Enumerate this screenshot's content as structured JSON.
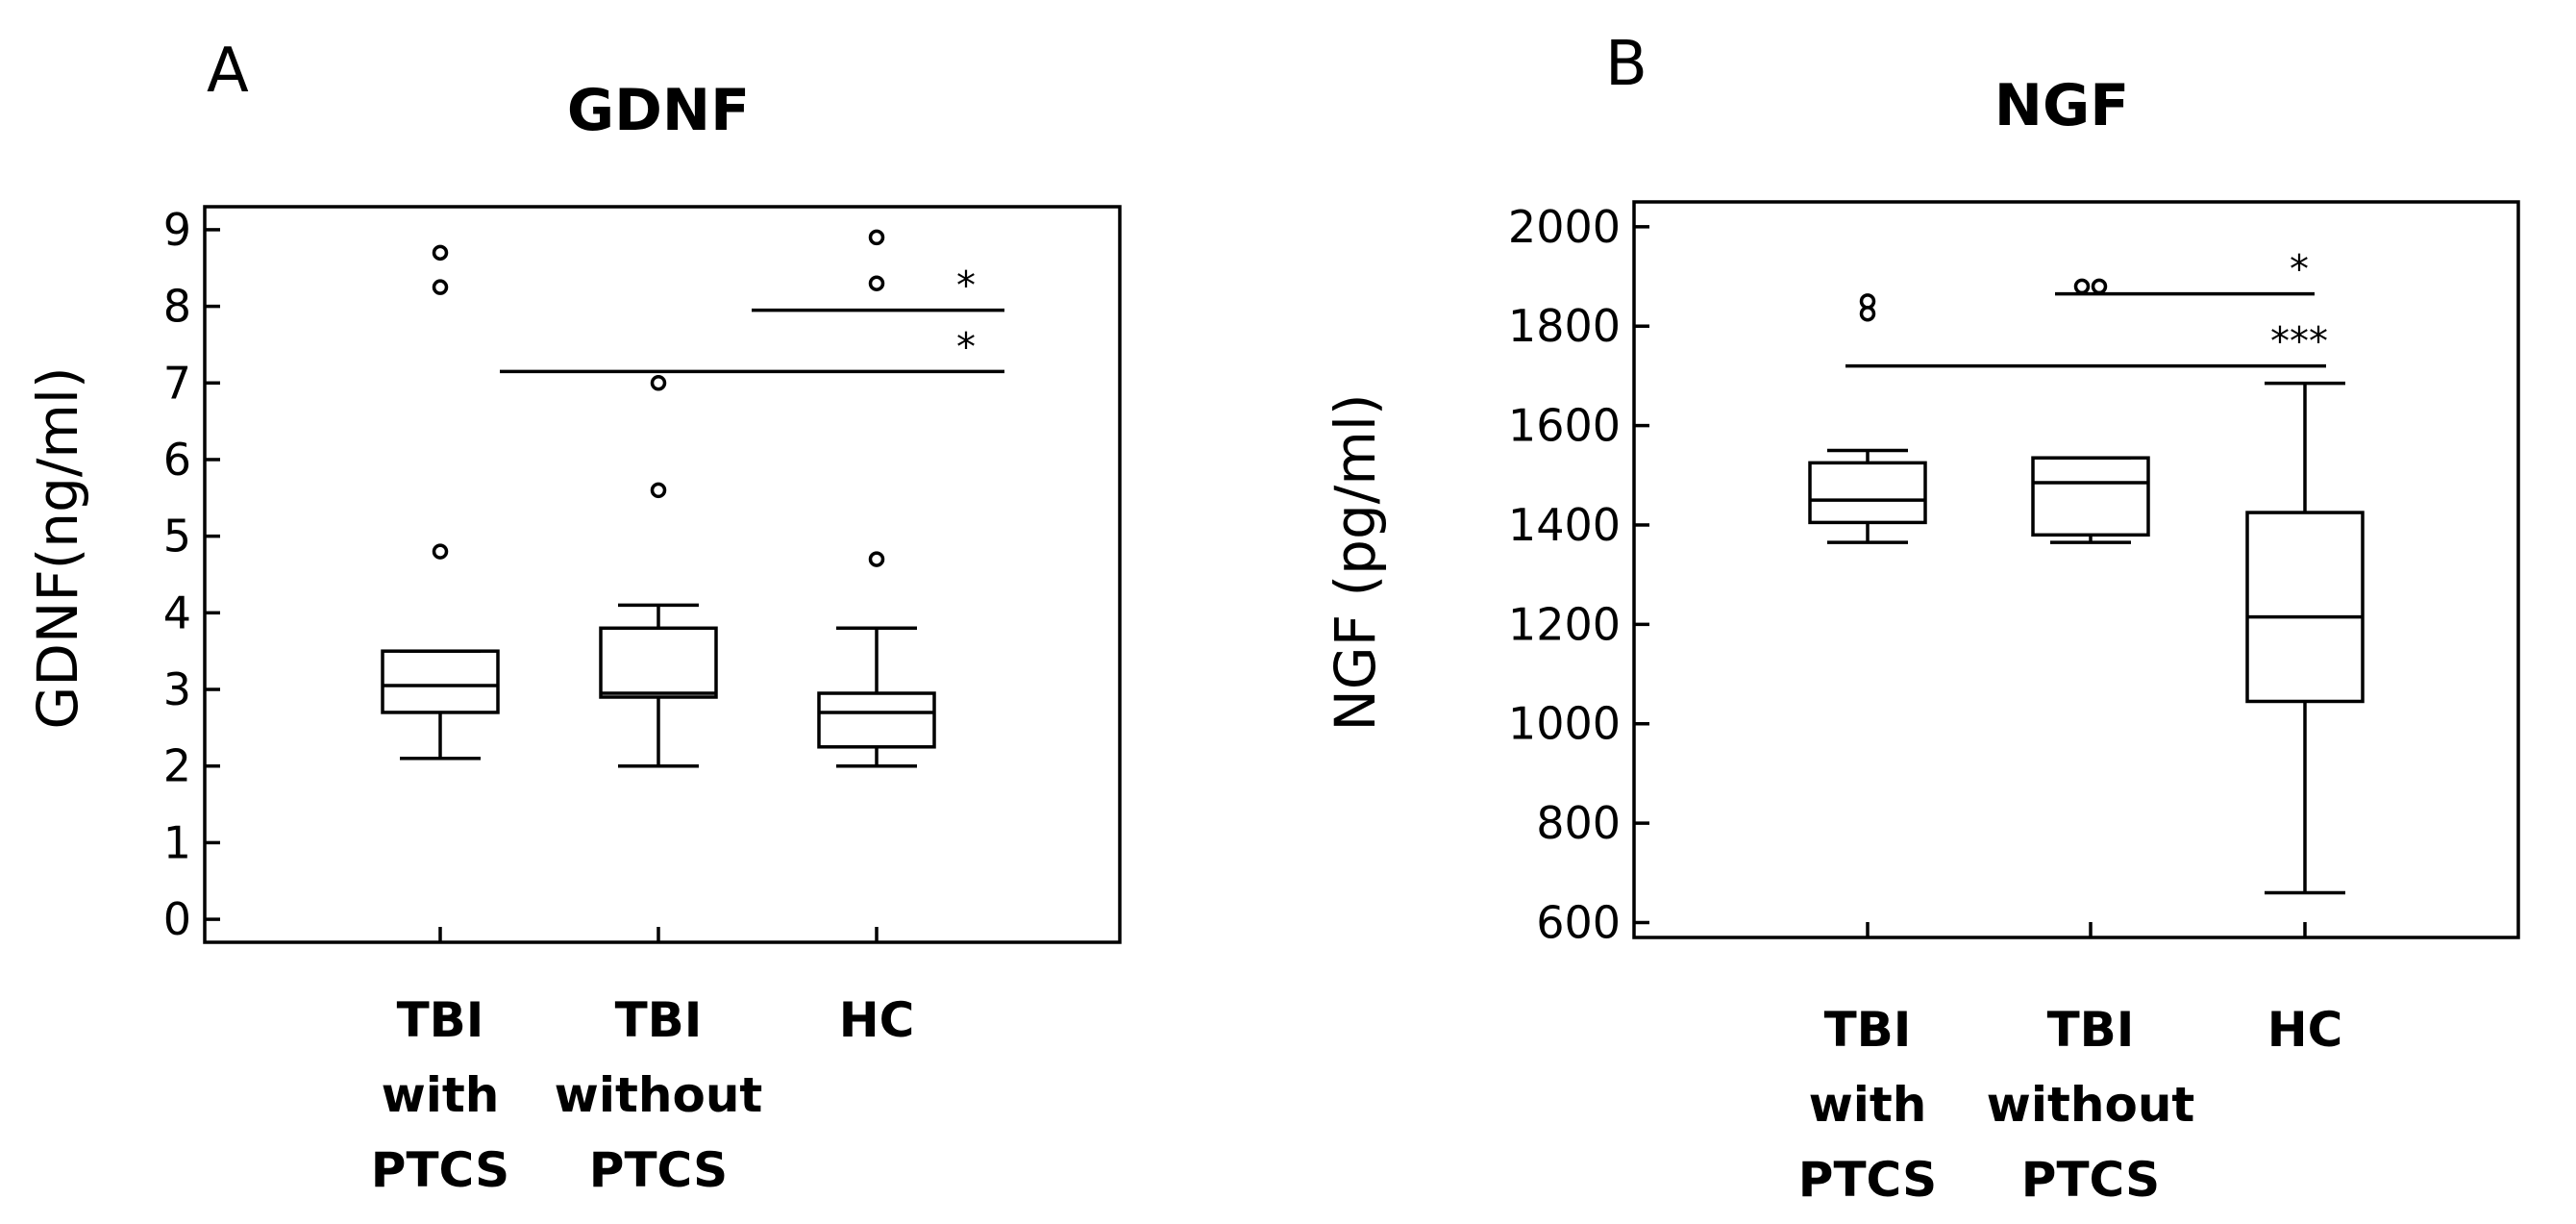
{
  "chart_data": [
    {
      "panel": "A",
      "type": "box",
      "title": "GDNF",
      "ylabel": "GDNF(ng/ml)",
      "ylim": [
        -0.3,
        9.3
      ],
      "yticks": [
        "0",
        "1",
        "2",
        "3",
        "4",
        "5",
        "6",
        "7",
        "8",
        "9"
      ],
      "categories": [
        [
          "TBI",
          "with",
          "PTCS"
        ],
        [
          "TBI",
          "without",
          "PTCS"
        ],
        [
          "HC"
        ]
      ],
      "boxes": [
        {
          "whisker_low": 2.1,
          "q1": 2.7,
          "median": 3.05,
          "q3": 3.5,
          "whisker_high": 3.5,
          "outliers": [
            4.8,
            8.25,
            8.7
          ]
        },
        {
          "whisker_low": 2.0,
          "q1": 2.9,
          "median": 2.95,
          "q3": 3.8,
          "whisker_high": 4.1,
          "outliers": [
            5.6,
            7.0
          ]
        },
        {
          "whisker_low": 2.0,
          "q1": 2.25,
          "median": 2.7,
          "q3": 2.95,
          "whisker_high": 3.8,
          "outliers": [
            4.7,
            8.3,
            8.9
          ]
        }
      ],
      "significance": [
        {
          "from": 1,
          "to": 2,
          "level": 7.15,
          "label": "*"
        },
        {
          "from": 2,
          "to": 2,
          "level": 7.95,
          "label": "*"
        }
      ]
    },
    {
      "panel": "B",
      "type": "box",
      "title": "NGF",
      "ylabel": "NGF (pg/ml)",
      "ylim": [
        570,
        2050
      ],
      "yticks": [
        "600",
        "800",
        "1000",
        "1200",
        "1400",
        "1600",
        "1800",
        "2000"
      ],
      "categories": [
        [
          "TBI",
          "with",
          "PTCS"
        ],
        [
          "TBI",
          "without",
          "PTCS"
        ],
        [
          "HC"
        ]
      ],
      "boxes": [
        {
          "whisker_low": 1365,
          "q1": 1405,
          "median": 1450,
          "q3": 1525,
          "whisker_high": 1550,
          "outliers": [
            1825,
            1850
          ]
        },
        {
          "whisker_low": 1365,
          "q1": 1380,
          "median": 1485,
          "q3": 1535,
          "whisker_high": 1535,
          "outliers": [
            1880,
            1880
          ]
        },
        {
          "whisker_low": 660,
          "q1": 1045,
          "median": 1215,
          "q3": 1425,
          "whisker_high": 1685,
          "outliers": []
        }
      ],
      "significance": [
        {
          "from": 0,
          "to": 2,
          "level": 1720,
          "label": "***"
        },
        {
          "from": 1,
          "to": 2,
          "level": 1865,
          "label": "*"
        }
      ]
    }
  ]
}
